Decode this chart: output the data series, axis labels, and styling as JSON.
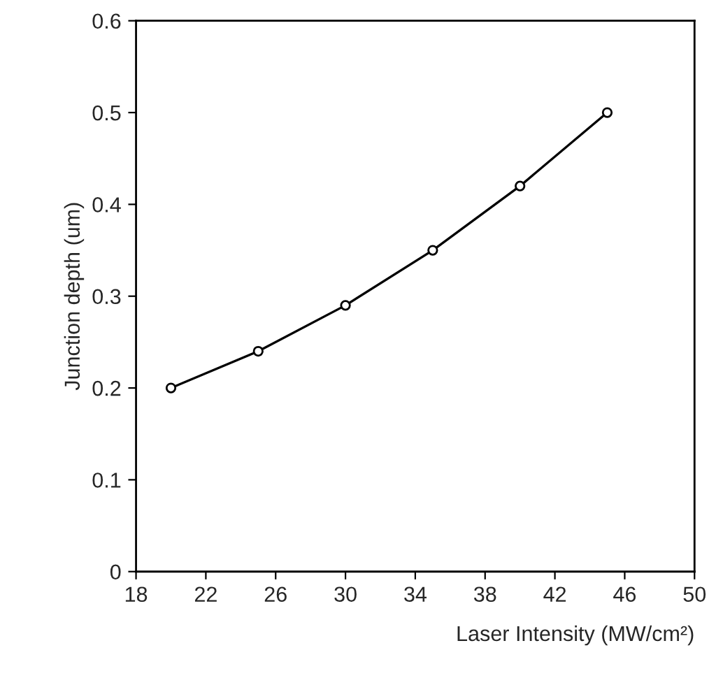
{
  "chart_data": {
    "type": "line",
    "xlabel": "Laser Intensity (MW/cm²)",
    "ylabel": "Junction depth (um)",
    "x": [
      20,
      25,
      30,
      35,
      40,
      45
    ],
    "series": [
      {
        "color": "#000000",
        "values": [
          0.2,
          0.24,
          0.29,
          0.35,
          0.42,
          0.5
        ]
      }
    ],
    "xlim": [
      18,
      50
    ],
    "xticks": [
      18,
      22,
      26,
      30,
      34,
      38,
      42,
      46,
      50
    ],
    "ylim": [
      0,
      0.6
    ],
    "yticks": [
      {
        "value": 0,
        "label": "0"
      },
      0.1,
      0.2,
      0.3,
      0.4,
      0.5,
      0.6
    ],
    "marker": "circle",
    "line_style": "solid",
    "grid": false
  }
}
